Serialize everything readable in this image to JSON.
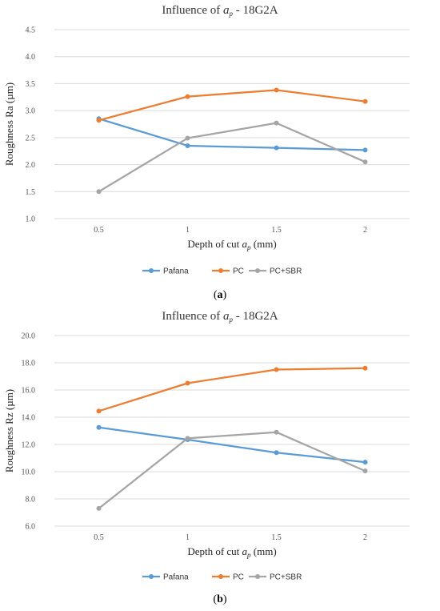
{
  "colors": {
    "Pafana": "#5B9BD5",
    "PC": "#ED7D31",
    "PC+SBR": "#A5A5A5",
    "grid": "#D9D9D9"
  },
  "chart_data": [
    {
      "type": "line",
      "title": {
        "prefix": "Influence of ",
        "var": "a",
        "sub": "p",
        "suffix": " - 18G2A"
      },
      "xlabel": {
        "prefix": "Depth of cut ",
        "var": "a",
        "sub": "p",
        "suffix": " (mm)"
      },
      "ylabel": "Roughness Ra (µm)",
      "categories": [
        "0.5",
        "1",
        "1.5",
        "2"
      ],
      "ylim": [
        1.0,
        4.5
      ],
      "yticks": [
        "1.0",
        "1.5",
        "2.0",
        "2.5",
        "3.0",
        "3.5",
        "4.0",
        "4.5"
      ],
      "grid": true,
      "legend": "bottom",
      "caption": "(a)",
      "series": [
        {
          "name": "Pafana",
          "values": [
            2.85,
            2.35,
            2.31,
            2.27
          ]
        },
        {
          "name": "PC",
          "values": [
            2.82,
            3.26,
            3.38,
            3.17
          ]
        },
        {
          "name": "PC+SBR",
          "values": [
            1.5,
            2.49,
            2.77,
            2.05
          ]
        }
      ]
    },
    {
      "type": "line",
      "title": {
        "prefix": "Influence of ",
        "var": "a",
        "sub": "p",
        "suffix": " - 18G2A"
      },
      "xlabel": {
        "prefix": "Depth of cut ",
        "var": "a",
        "sub": "p",
        "suffix": " (mm)"
      },
      "ylabel": "Roughness Rz (µm)",
      "categories": [
        "0.5",
        "1",
        "1.5",
        "2"
      ],
      "ylim": [
        6.0,
        20.0
      ],
      "yticks": [
        "6.0",
        "8.0",
        "10.0",
        "12.0",
        "14.0",
        "16.0",
        "18.0",
        "20.0"
      ],
      "grid": true,
      "legend": "bottom",
      "caption": "(b)",
      "series": [
        {
          "name": "Pafana",
          "values": [
            13.25,
            12.35,
            11.4,
            10.7
          ]
        },
        {
          "name": "PC",
          "values": [
            14.45,
            16.5,
            17.5,
            17.6
          ]
        },
        {
          "name": "PC+SBR",
          "values": [
            7.3,
            12.45,
            12.9,
            10.05
          ]
        }
      ]
    }
  ]
}
